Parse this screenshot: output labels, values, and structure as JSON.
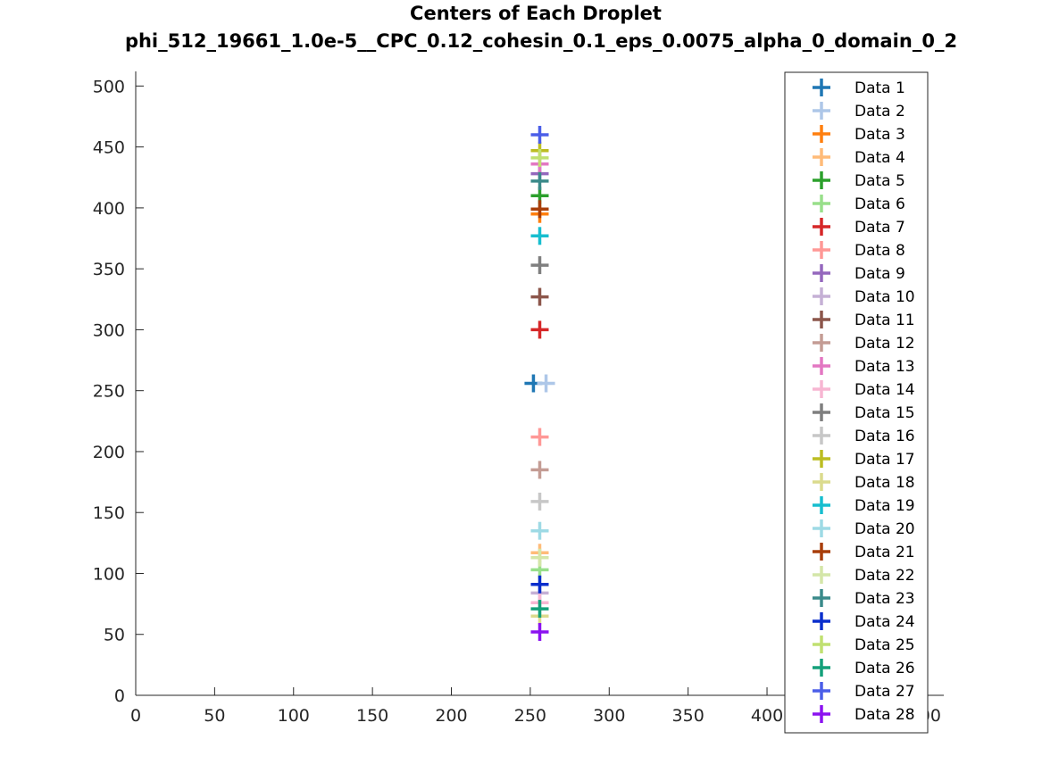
{
  "chart_data": {
    "type": "scatter",
    "title": "Centers of Each Droplet",
    "subtitle": "phi_512_19661_1.0e-5__CPC_0.12_cohesin_0.1_eps_0.0075_alpha_0_domain_0_2",
    "xlabel": "",
    "ylabel": "",
    "xlim": [
      0,
      512
    ],
    "ylim": [
      0,
      512
    ],
    "xticks": [
      "0",
      "50",
      "100",
      "150",
      "200",
      "250",
      "300",
      "350",
      "400",
      "450",
      "500"
    ],
    "yticks": [
      "0",
      "50",
      "100",
      "150",
      "200",
      "250",
      "300",
      "350",
      "400",
      "450",
      "500"
    ],
    "marker": "plus",
    "grid": false,
    "legend_position": "right",
    "series": [
      {
        "name": "Data 1",
        "color": "#1f77b4",
        "x": 252,
        "y": 256
      },
      {
        "name": "Data 2",
        "color": "#aec7e8",
        "x": 260,
        "y": 256
      },
      {
        "name": "Data 3",
        "color": "#ff7f0e",
        "x": 256,
        "y": 395
      },
      {
        "name": "Data 4",
        "color": "#ffbb78",
        "x": 256,
        "y": 117
      },
      {
        "name": "Data 5",
        "color": "#2ca02c",
        "x": 256,
        "y": 410
      },
      {
        "name": "Data 6",
        "color": "#98df8a",
        "x": 256,
        "y": 103
      },
      {
        "name": "Data 7",
        "color": "#d62728",
        "x": 256,
        "y": 300
      },
      {
        "name": "Data 8",
        "color": "#ff9896",
        "x": 256,
        "y": 212
      },
      {
        "name": "Data 9",
        "color": "#9467bd",
        "x": 256,
        "y": 428
      },
      {
        "name": "Data 10",
        "color": "#c5b0d5",
        "x": 256,
        "y": 84
      },
      {
        "name": "Data 11",
        "color": "#8c564b",
        "x": 256,
        "y": 327
      },
      {
        "name": "Data 12",
        "color": "#c49c94",
        "x": 256,
        "y": 185
      },
      {
        "name": "Data 13",
        "color": "#e377c2",
        "x": 256,
        "y": 436
      },
      {
        "name": "Data 14",
        "color": "#f7b6d2",
        "x": 256,
        "y": 76
      },
      {
        "name": "Data 15",
        "color": "#7f7f7f",
        "x": 256,
        "y": 353
      },
      {
        "name": "Data 16",
        "color": "#c7c7c7",
        "x": 256,
        "y": 159
      },
      {
        "name": "Data 17",
        "color": "#bcbd22",
        "x": 256,
        "y": 447
      },
      {
        "name": "Data 18",
        "color": "#dbdb8d",
        "x": 256,
        "y": 65
      },
      {
        "name": "Data 19",
        "color": "#17becf",
        "x": 256,
        "y": 377
      },
      {
        "name": "Data 20",
        "color": "#9edae5",
        "x": 256,
        "y": 135
      },
      {
        "name": "Data 21",
        "color": "#a83e0a",
        "x": 256,
        "y": 399
      },
      {
        "name": "Data 22",
        "color": "#d4e6a8",
        "x": 256,
        "y": 113
      },
      {
        "name": "Data 23",
        "color": "#3a8a8a",
        "x": 256,
        "y": 422
      },
      {
        "name": "Data 24",
        "color": "#0a2ecc",
        "x": 256,
        "y": 91
      },
      {
        "name": "Data 25",
        "color": "#c0e070",
        "x": 256,
        "y": 441
      },
      {
        "name": "Data 26",
        "color": "#14a07a",
        "x": 256,
        "y": 71
      },
      {
        "name": "Data 27",
        "color": "#4b5ee8",
        "x": 256,
        "y": 460
      },
      {
        "name": "Data 28",
        "color": "#8b12f0",
        "x": 256,
        "y": 52
      }
    ]
  }
}
